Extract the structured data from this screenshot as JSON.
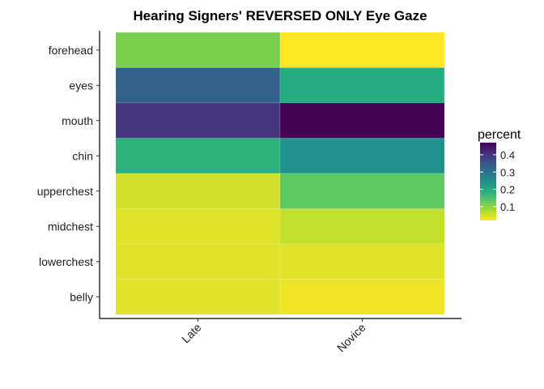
{
  "chart_data": {
    "type": "heatmap",
    "title": "Hearing Signers' REVERSED ONLY Eye Gaze",
    "x_categories": [
      "Late",
      "Novice"
    ],
    "y_categories": [
      "forehead",
      "eyes",
      "mouth",
      "chin",
      "upperchest",
      "midchest",
      "lowerchest",
      "belly"
    ],
    "values": [
      [
        0.11,
        0.02
      ],
      [
        0.33,
        0.19
      ],
      [
        0.4,
        0.47
      ],
      [
        0.18,
        0.24
      ],
      [
        0.05,
        0.13
      ],
      [
        0.04,
        0.06
      ],
      [
        0.04,
        0.04
      ],
      [
        0.04,
        0.03
      ]
    ],
    "legend": {
      "title": "percent",
      "ticks": [
        0.1,
        0.2,
        0.3,
        0.4
      ],
      "tick_labels": [
        "0.1",
        "0.2",
        "0.3",
        "0.4"
      ],
      "range": [
        0.02,
        0.47
      ],
      "colormap": "viridis",
      "placement": "right"
    },
    "grid": false
  }
}
